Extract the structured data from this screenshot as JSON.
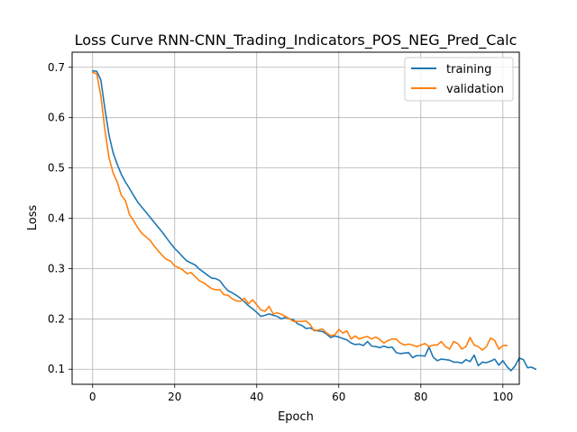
{
  "chart_data": {
    "type": "line",
    "title": "Loss Curve RNN-CNN_Trading_Indicators_POS_NEG_Pred_Calc",
    "xlabel": "Epoch",
    "ylabel": "Loss",
    "xlim": [
      -5,
      104
    ],
    "ylim": [
      0.07,
      0.73
    ],
    "xticks": [
      0,
      20,
      40,
      60,
      80,
      100
    ],
    "yticks": [
      0.1,
      0.2,
      0.3,
      0.4,
      0.5,
      0.6,
      0.7
    ],
    "xtick_labels": [
      "0",
      "20",
      "40",
      "60",
      "80",
      "100"
    ],
    "ytick_labels": [
      "0.1",
      "0.2",
      "0.3",
      "0.4",
      "0.5",
      "0.6",
      "0.7"
    ],
    "grid": true,
    "legend_position": "top-right",
    "series": [
      {
        "name": "training",
        "color": "#1f77b4",
        "values": [
          0.693,
          0.692,
          0.675,
          0.617,
          0.565,
          0.53,
          0.507,
          0.487,
          0.472,
          0.459,
          0.445,
          0.432,
          0.422,
          0.412,
          0.402,
          0.392,
          0.382,
          0.372,
          0.361,
          0.35,
          0.34,
          0.332,
          0.323,
          0.315,
          0.311,
          0.307,
          0.299,
          0.293,
          0.287,
          0.281,
          0.28,
          0.276,
          0.265,
          0.256,
          0.252,
          0.247,
          0.241,
          0.234,
          0.226,
          0.22,
          0.213,
          0.205,
          0.207,
          0.21,
          0.207,
          0.205,
          0.2,
          0.203,
          0.2,
          0.198,
          0.19,
          0.187,
          0.181,
          0.182,
          0.178,
          0.176,
          0.175,
          0.17,
          0.163,
          0.166,
          0.164,
          0.161,
          0.158,
          0.152,
          0.149,
          0.15,
          0.147,
          0.155,
          0.146,
          0.145,
          0.143,
          0.146,
          0.143,
          0.144,
          0.133,
          0.131,
          0.132,
          0.133,
          0.123,
          0.127,
          0.127,
          0.126,
          0.144,
          0.124,
          0.117,
          0.12,
          0.119,
          0.118,
          0.114,
          0.114,
          0.112,
          0.119,
          0.115,
          0.128,
          0.107,
          0.114,
          0.113,
          0.116,
          0.12,
          0.108,
          0.117,
          0.105,
          0.097,
          0.107,
          0.122,
          0.119,
          0.103,
          0.104,
          0.1
        ]
      },
      {
        "name": "validation",
        "color": "#ff7f0e",
        "values": [
          0.69,
          0.687,
          0.643,
          0.575,
          0.52,
          0.49,
          0.472,
          0.445,
          0.435,
          0.407,
          0.395,
          0.381,
          0.37,
          0.363,
          0.356,
          0.345,
          0.335,
          0.326,
          0.318,
          0.315,
          0.305,
          0.302,
          0.297,
          0.29,
          0.292,
          0.284,
          0.276,
          0.272,
          0.266,
          0.26,
          0.258,
          0.258,
          0.248,
          0.247,
          0.24,
          0.236,
          0.235,
          0.241,
          0.23,
          0.238,
          0.228,
          0.218,
          0.215,
          0.225,
          0.21,
          0.212,
          0.209,
          0.205,
          0.2,
          0.195,
          0.195,
          0.195,
          0.196,
          0.189,
          0.176,
          0.178,
          0.18,
          0.172,
          0.167,
          0.168,
          0.179,
          0.172,
          0.176,
          0.16,
          0.166,
          0.16,
          0.163,
          0.165,
          0.16,
          0.164,
          0.159,
          0.152,
          0.157,
          0.16,
          0.16,
          0.152,
          0.148,
          0.15,
          0.148,
          0.145,
          0.148,
          0.151,
          0.145,
          0.148,
          0.148,
          0.155,
          0.145,
          0.14,
          0.155,
          0.151,
          0.14,
          0.145,
          0.163,
          0.148,
          0.145,
          0.138,
          0.145,
          0.162,
          0.157,
          0.14,
          0.147,
          0.147
        ]
      }
    ]
  }
}
